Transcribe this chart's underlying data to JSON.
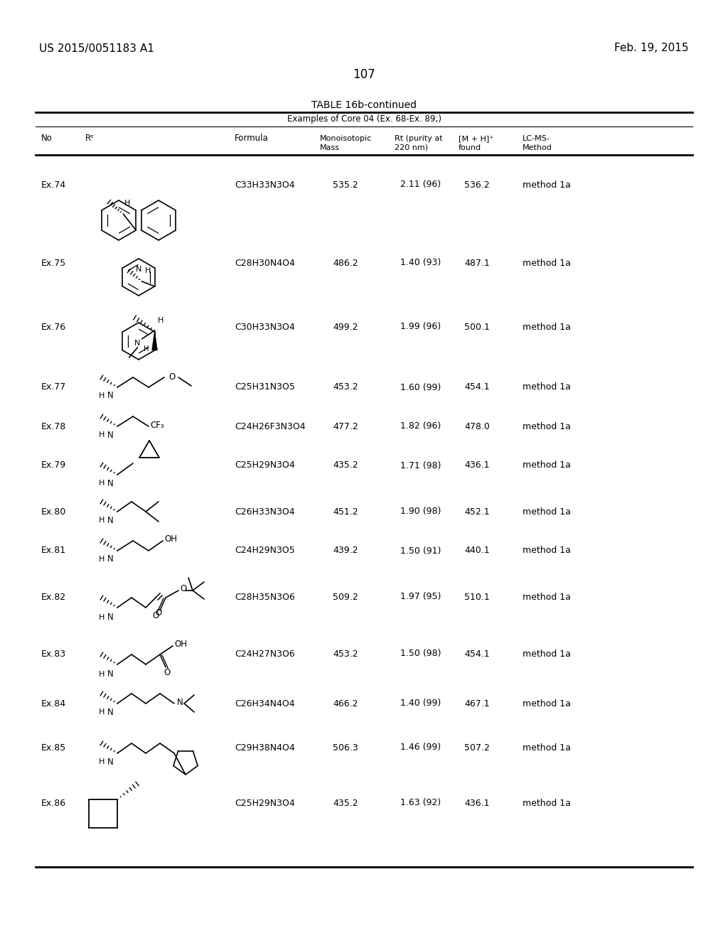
{
  "title": "TABLE 16b-continued",
  "subtitle": "Examples of Core 04 (Ex. 68-Ex. 89;)",
  "page_num": "107",
  "patent_left": "US 2015/0051183 A1",
  "patent_right": "Feb. 19, 2015",
  "rows": [
    {
      "no": "Ex.74",
      "formula": "C33H33N3O4",
      "mass": "535.2",
      "rt": "2.11 (96)",
      "mh": "536.2",
      "method": "method 1a"
    },
    {
      "no": "Ex.75",
      "formula": "C28H30N4O4",
      "mass": "486.2",
      "rt": "1.40 (93)",
      "mh": "487.1",
      "method": "method 1a"
    },
    {
      "no": "Ex.76",
      "formula": "C30H33N3O4",
      "mass": "499.2",
      "rt": "1.99 (96)",
      "mh": "500.1",
      "method": "method 1a"
    },
    {
      "no": "Ex.77",
      "formula": "C25H31N3O5",
      "mass": "453.2",
      "rt": "1.60 (99)",
      "mh": "454.1",
      "method": "method 1a"
    },
    {
      "no": "Ex.78",
      "formula": "C24H26F3N3O4",
      "mass": "477.2",
      "rt": "1.82 (96)",
      "mh": "478.0",
      "method": "method 1a"
    },
    {
      "no": "Ex.79",
      "formula": "C25H29N3O4",
      "mass": "435.2",
      "rt": "1.71 (98)",
      "mh": "436.1",
      "method": "method 1a"
    },
    {
      "no": "Ex.80",
      "formula": "C26H33N3O4",
      "mass": "451.2",
      "rt": "1.90 (98)",
      "mh": "452.1",
      "method": "method 1a"
    },
    {
      "no": "Ex.81",
      "formula": "C24H29N3O5",
      "mass": "439.2",
      "rt": "1.50 (91)",
      "mh": "440.1",
      "method": "method 1a"
    },
    {
      "no": "Ex.82",
      "formula": "C28H35N3O6",
      "mass": "509.2",
      "rt": "1.97 (95)",
      "mh": "510.1",
      "method": "method 1a"
    },
    {
      "no": "Ex.83",
      "formula": "C24H27N3O6",
      "mass": "453.2",
      "rt": "1.50 (98)",
      "mh": "454.1",
      "method": "method 1a"
    },
    {
      "no": "Ex.84",
      "formula": "C26H34N4O4",
      "mass": "466.2",
      "rt": "1.40 (99)",
      "mh": "467.1",
      "method": "method 1a"
    },
    {
      "no": "Ex.85",
      "formula": "C29H38N4O4",
      "mass": "506.3",
      "rt": "1.46 (99)",
      "mh": "507.2",
      "method": "method 1a"
    },
    {
      "no": "Ex.86",
      "formula": "C25H29N3O4",
      "mass": "435.2",
      "rt": "1.63 (92)",
      "mh": "436.1",
      "method": "method 1a"
    }
  ]
}
